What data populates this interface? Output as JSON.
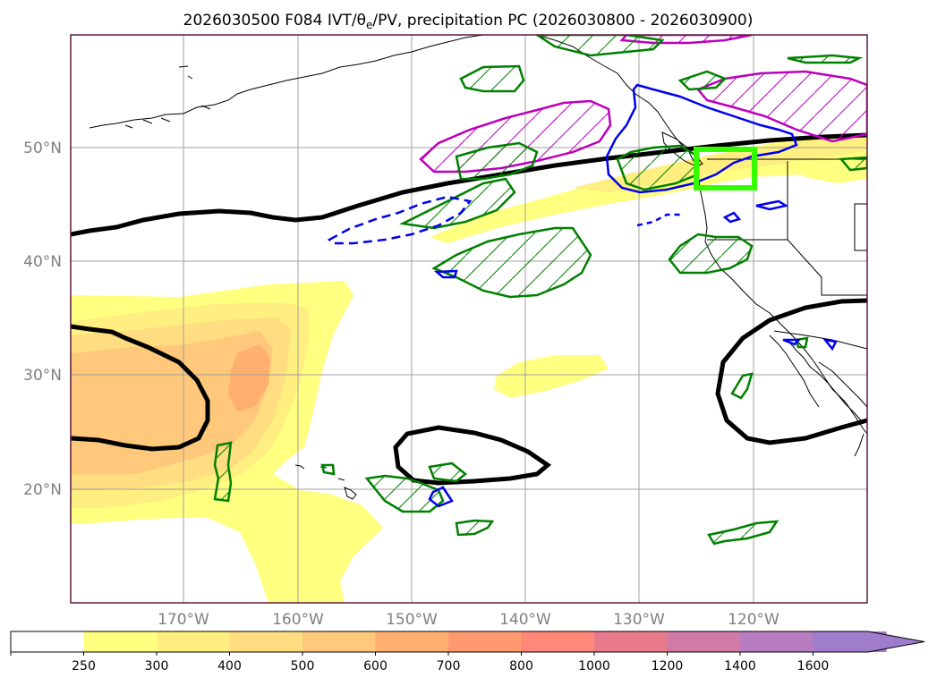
{
  "figure": {
    "title": "2026030500 F084 IVT/θe/PV, precipitation PC (2026030800 - 2026030900)"
  },
  "map": {
    "lat_labels": [
      "50°N",
      "40°N",
      "30°N",
      "20°N"
    ],
    "lon_labels": [
      "170°W",
      "160°W",
      "150°W",
      "140°W",
      "130°W",
      "120°W"
    ],
    "lat_values": [
      50,
      40,
      30,
      20
    ],
    "lon_values": [
      -170,
      -160,
      -150,
      -140,
      -130,
      -120
    ],
    "grid_color": "#a0a0a0",
    "land_outline_color": "#000000",
    "theta_e_contour_color": "#000000",
    "pv_positive_color": "#bb00bb",
    "precip_pc_color": "#008000",
    "pv_contour_color": "#0000ee",
    "highlight_box_color": "#33ff00"
  },
  "colorbar": {
    "tick_labels": [
      "250",
      "300",
      "400",
      "500",
      "600",
      "700",
      "800",
      "1000",
      "1200",
      "1400",
      "1600"
    ],
    "levels": [
      250,
      300,
      400,
      500,
      600,
      700,
      800,
      1000,
      1200,
      1400,
      1600
    ],
    "colors": [
      "#ffffff",
      "#ffff80",
      "#ffee80",
      "#ffdd80",
      "#ffc87a",
      "#ffb070",
      "#ff9a70",
      "#ff8878",
      "#e87a8c",
      "#d07aa5",
      "#b87cc0",
      "#a07ccc"
    ],
    "extend": "max"
  }
}
